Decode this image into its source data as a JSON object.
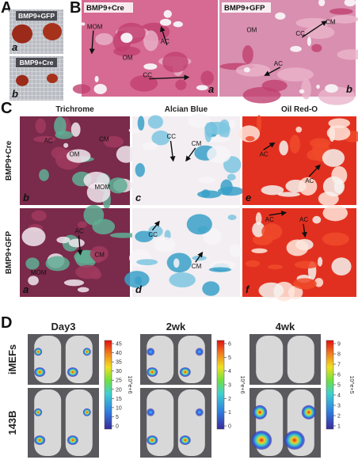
{
  "panel_a": {
    "label": "A",
    "photos": [
      {
        "caption": "BMP9+GFP",
        "letter": "a"
      },
      {
        "caption": "BMP9+Cre",
        "letter": "b"
      }
    ]
  },
  "panel_b": {
    "label": "B",
    "images": [
      {
        "title": "BMP9+Cre",
        "letter": "a",
        "annotations": [
          "MOM",
          "AC",
          "OM",
          "CC"
        ]
      },
      {
        "title": "BMP9+GFP",
        "letter": "b",
        "annotations": [
          "OM",
          "CM",
          "CC",
          "AC"
        ]
      }
    ]
  },
  "panel_c": {
    "label": "C",
    "columns": [
      "Trichrome",
      "Alcian Blue",
      "Oil Red-O"
    ],
    "rows": [
      {
        "label": "BMP9+Cre",
        "cells": [
          {
            "letter": "b",
            "annotations": [
              "AC",
              "OM",
              "CM",
              "MOM"
            ]
          },
          {
            "letter": "c",
            "annotations": [
              "CC",
              "CM"
            ]
          },
          {
            "letter": "e",
            "annotations": [
              "AC",
              "AC"
            ]
          }
        ]
      },
      {
        "label": "BMP9+GFP",
        "cells": [
          {
            "letter": "a",
            "annotations": [
              "AC",
              "CM",
              "MOM"
            ]
          },
          {
            "letter": "d",
            "annotations": [
              "CC",
              "CM"
            ]
          },
          {
            "letter": "f",
            "annotations": [
              "AC",
              "AC"
            ]
          }
        ]
      }
    ]
  },
  "panel_d": {
    "label": "D",
    "rows": [
      "iMEFs",
      "143B"
    ],
    "timepoints": [
      {
        "label": "Day3",
        "scale_ticks": [
          45,
          40,
          35,
          30,
          25,
          20,
          15,
          10,
          5,
          0
        ],
        "scale_unit": "10^e+6"
      },
      {
        "label": "2wk",
        "scale_ticks": [
          6,
          5,
          4,
          3,
          2,
          1,
          0
        ],
        "scale_unit": "10^e+6"
      },
      {
        "label": "4wk",
        "scale_ticks": [
          9,
          8,
          7,
          6,
          5,
          4,
          3,
          2,
          1
        ],
        "scale_unit": "10^e+5"
      }
    ]
  }
}
